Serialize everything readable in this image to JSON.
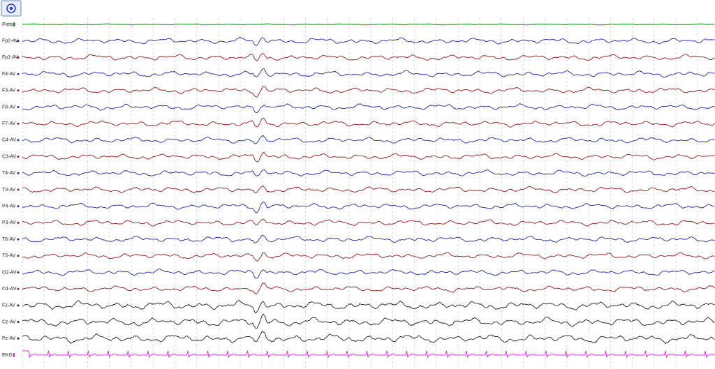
{
  "channels": [
    {
      "label": "Pietso",
      "color": "#2f9a2f"
    },
    {
      "label": "Fp2-AV",
      "color": "#1f2a9a"
    },
    {
      "label": "Fp1-AV",
      "color": "#8e1c1c"
    },
    {
      "label": "F4-AV",
      "color": "#1f2a9a"
    },
    {
      "label": "F3-AV",
      "color": "#8e1c1c"
    },
    {
      "label": "F8-AV",
      "color": "#1f2a9a"
    },
    {
      "label": "F7-AV",
      "color": "#8e1c1c"
    },
    {
      "label": "C4-AV",
      "color": "#1f2a9a"
    },
    {
      "label": "C3-AV",
      "color": "#8e1c1c"
    },
    {
      "label": "T4-AV",
      "color": "#1f2a9a"
    },
    {
      "label": "T3-AV",
      "color": "#8e1c1c"
    },
    {
      "label": "P4-AV",
      "color": "#1f2a9a"
    },
    {
      "label": "P3-AV",
      "color": "#8e1c1c"
    },
    {
      "label": "T6-AV",
      "color": "#1f2a9a"
    },
    {
      "label": "T5-AV",
      "color": "#8e1c1c"
    },
    {
      "label": "O2-AV",
      "color": "#1f2a9a"
    },
    {
      "label": "O1-AV",
      "color": "#8e1c1c"
    },
    {
      "label": "Fz-AV",
      "color": "#222222"
    },
    {
      "label": "Cz-AV",
      "color": "#222222"
    },
    {
      "label": "Pz-AV",
      "color": "#222222"
    },
    {
      "label": "EKG",
      "color": "#e020e0"
    }
  ]
}
